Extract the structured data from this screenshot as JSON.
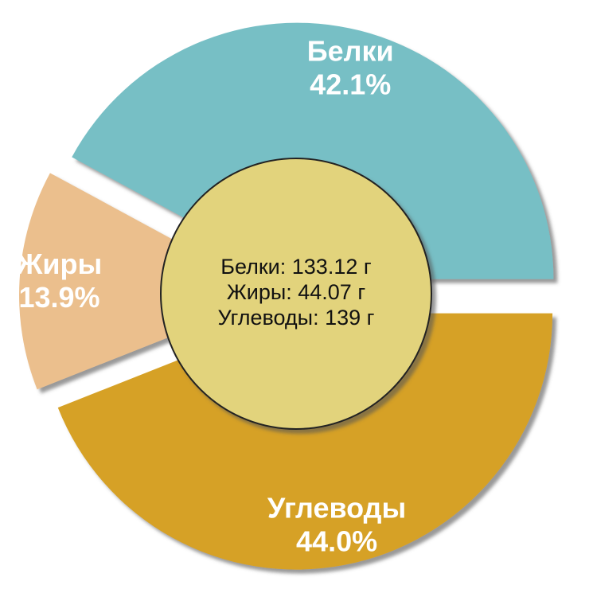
{
  "chart_data": {
    "type": "pie",
    "categories": [
      "Белки",
      "Жиры",
      "Углеводы"
    ],
    "values": [
      42.1,
      13.9,
      44.0
    ],
    "value_labels": [
      "42.1%",
      "13.9%",
      "44.0%"
    ],
    "colors": [
      "#77bfc5",
      "#ebbf8d",
      "#d6a125"
    ],
    "center_lines": [
      "Белки: 133.12 г",
      "Жиры: 44.07 г",
      "Углеводы: 139 г"
    ],
    "center_color": "#e2d37c"
  }
}
